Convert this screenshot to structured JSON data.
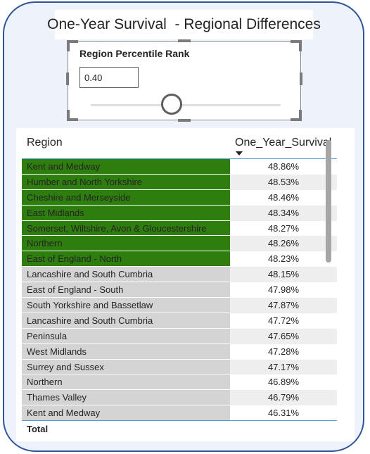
{
  "title": "One-Year Survival  - Regional Differences",
  "slicer": {
    "title": "Region Percentile Rank",
    "value": "0.40",
    "slider_fraction": 0.4
  },
  "colors": {
    "highlight": "#2e7d0f",
    "normal": "#d4d4d4",
    "frame_border": "#2f5597",
    "header_line": "#5b9bd5"
  },
  "table": {
    "col_region": "Region",
    "col_value": "One_Year_Survival",
    "total_label": "Total",
    "rows": [
      {
        "region": "Kent and Medway",
        "value": "48.86%",
        "highlight": true
      },
      {
        "region": "Humber and North Yorkshire",
        "value": "48.53%",
        "highlight": true
      },
      {
        "region": "Cheshire and Merseyside",
        "value": "48.46%",
        "highlight": true
      },
      {
        "region": "East Midlands",
        "value": "48.34%",
        "highlight": true
      },
      {
        "region": "Somerset, Wiltshire, Avon & Gloucestershire",
        "value": "48.27%",
        "highlight": true
      },
      {
        "region": "Northern",
        "value": "48.26%",
        "highlight": true
      },
      {
        "region": "East of England - North",
        "value": "48.23%",
        "highlight": true
      },
      {
        "region": "Lancashire and South Cumbria",
        "value": "48.15%",
        "highlight": false
      },
      {
        "region": "East of England - South",
        "value": "47.98%",
        "highlight": false
      },
      {
        "region": "South Yorkshire and Bassetlaw",
        "value": "47.87%",
        "highlight": false
      },
      {
        "region": "Lancashire and South Cumbria",
        "value": "47.72%",
        "highlight": false
      },
      {
        "region": "Peninsula",
        "value": "47.65%",
        "highlight": false
      },
      {
        "region": "West Midlands",
        "value": "47.28%",
        "highlight": false
      },
      {
        "region": "Surrey and Sussex",
        "value": "47.17%",
        "highlight": false
      },
      {
        "region": "Northern",
        "value": "46.89%",
        "highlight": false
      },
      {
        "region": "Thames Valley",
        "value": "46.79%",
        "highlight": false
      },
      {
        "region": "Kent and Medway",
        "value": "46.31%",
        "highlight": false
      }
    ]
  }
}
